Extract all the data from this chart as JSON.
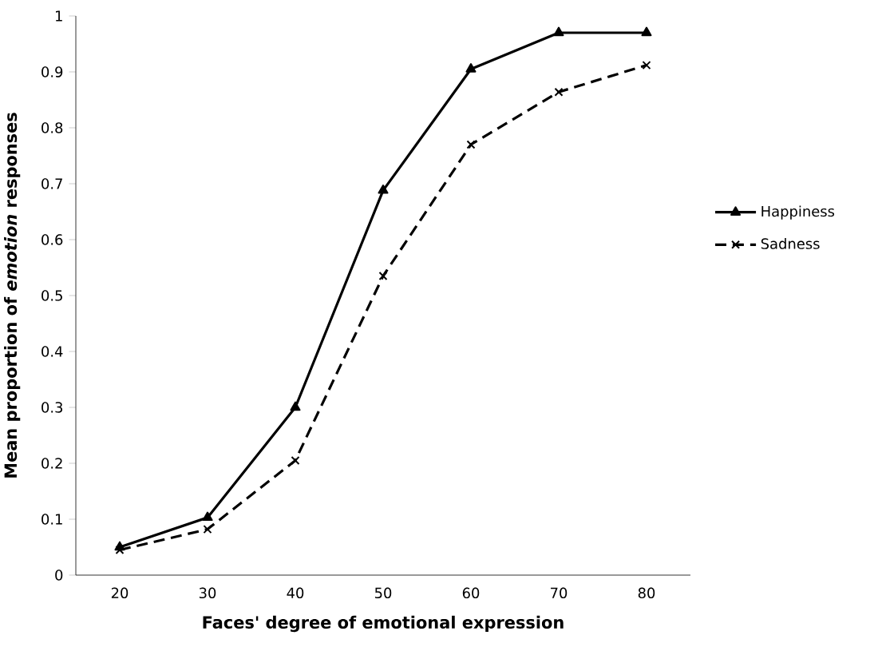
{
  "chart_data": {
    "type": "line",
    "xlabel": "Faces' degree of emotional expression",
    "ylabel": "Mean proportion of *emotion* responses",
    "categories": [
      "20",
      "30",
      "40",
      "50",
      "60",
      "70",
      "80"
    ],
    "series": [
      {
        "name": "Happiness",
        "color": "#000000",
        "marker": "triangle",
        "line_style": "solid",
        "values": [
          0.05,
          0.103,
          0.3,
          0.688,
          0.905,
          0.97,
          0.97
        ]
      },
      {
        "name": "Sadness",
        "color": "#000000",
        "marker": "cross",
        "line_style": "dashed",
        "values": [
          0.045,
          0.082,
          0.205,
          0.535,
          0.77,
          0.864,
          0.912
        ]
      }
    ],
    "ylim": [
      0,
      1
    ],
    "yticks": [
      0,
      0.1,
      0.2,
      0.3,
      0.4,
      0.5,
      0.6,
      0.7,
      0.8,
      0.9,
      1
    ],
    "grid": false,
    "legend": "right"
  }
}
